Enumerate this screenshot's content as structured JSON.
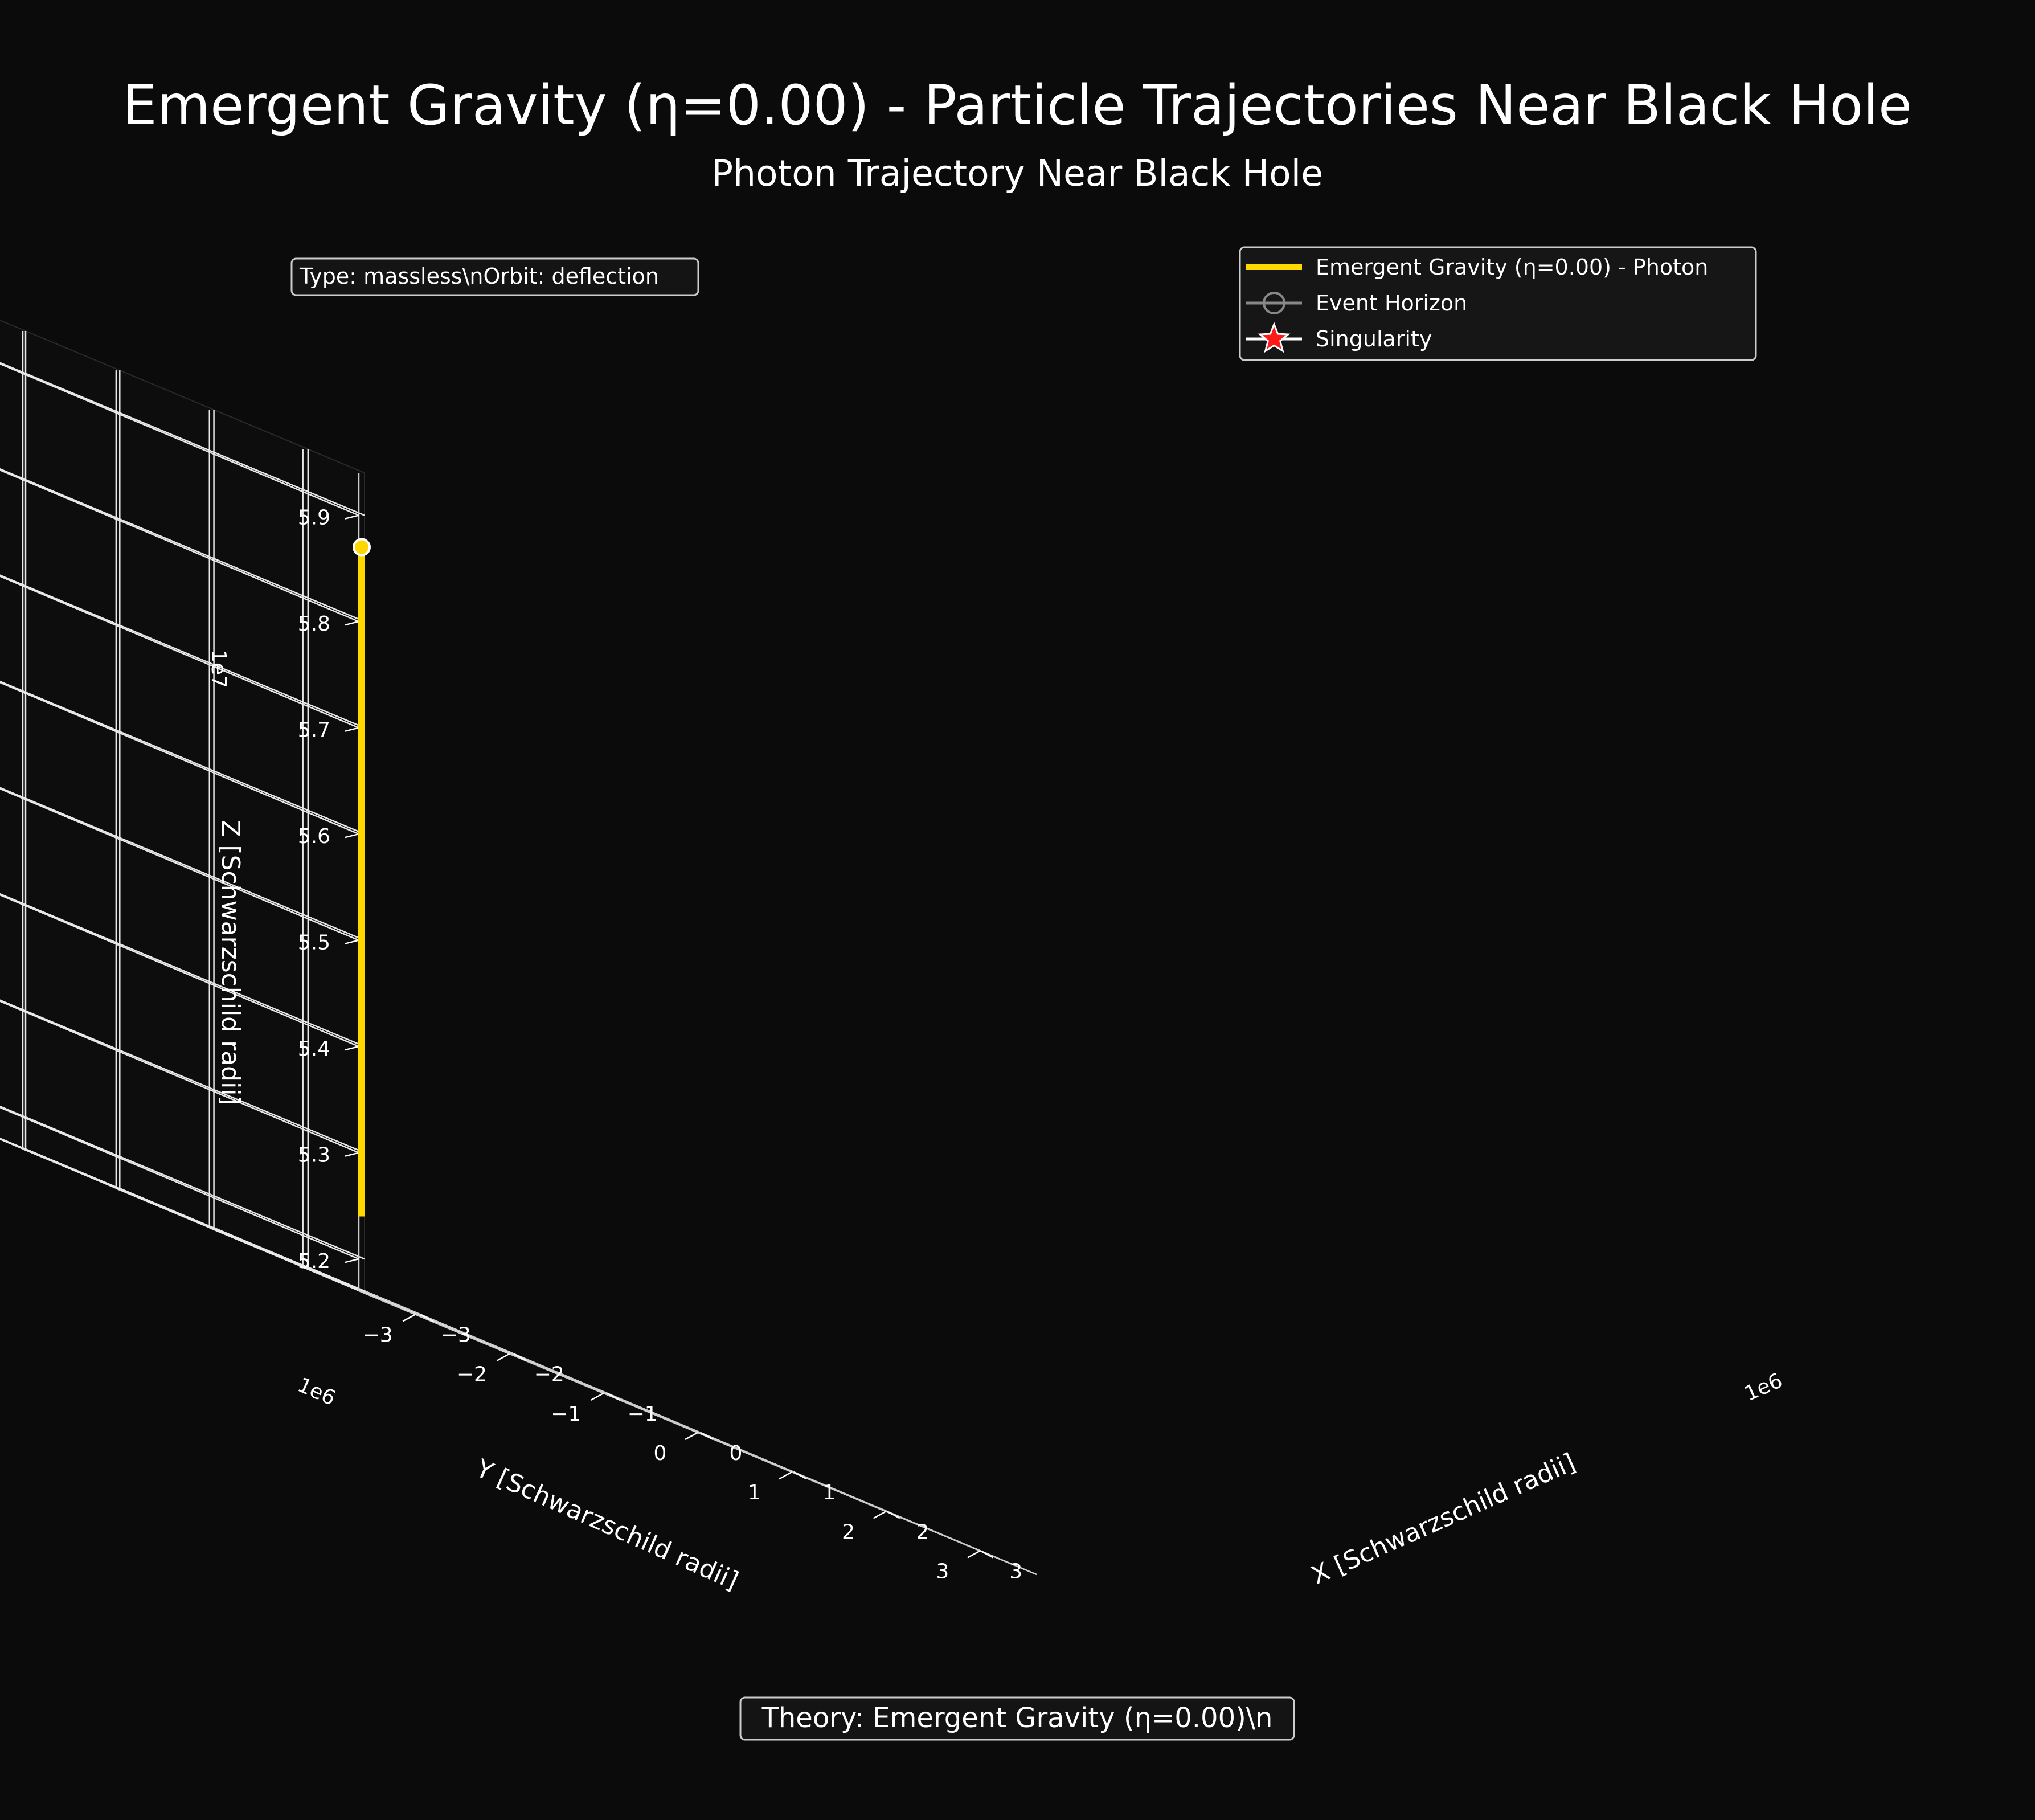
{
  "figure": {
    "title": "Emergent Gravity (η=0.00) - Particle Trajectories Near Black Hole",
    "subtitle": "Photon Trajectory Near Black Hole",
    "info_box": "Type: massless\\nOrbit: deflection",
    "footer_box": "Theory: Emergent Gravity (η=0.00)\\n",
    "background": "#0b0b0b"
  },
  "legend": {
    "items": [
      {
        "label": "Emergent Gravity (η=0.00) - Photon",
        "marker": "line",
        "color": "#ffd700"
      },
      {
        "label": "Event Horizon",
        "marker": "circle",
        "color": "#888888"
      },
      {
        "label": "Singularity",
        "marker": "star",
        "color": "#ff0000"
      }
    ]
  },
  "chart_data": {
    "type": "line",
    "projection": "3d",
    "xlabel": "X [Schwarzschild radii]",
    "ylabel": "Y [Schwarzschild radii]",
    "zlabel": "Z [Schwarzschild radii]",
    "x_offset_text": "1e6",
    "y_offset_text": "1e6",
    "z_offset_text": "1e7",
    "x_ticks": [
      "−3",
      "−2",
      "−1",
      "0",
      "1",
      "2",
      "3"
    ],
    "y_ticks": [
      "−3",
      "−2",
      "−1",
      "0",
      "1",
      "2",
      "3"
    ],
    "z_ticks": [
      "5.2",
      "5.3",
      "5.4",
      "5.5",
      "5.6",
      "5.7",
      "5.8",
      "5.9"
    ],
    "xlim": [
      -3600000.0,
      3600000.0
    ],
    "ylim": [
      -3600000.0,
      3600000.0
    ],
    "zlim": [
      51700000,
      59400000
    ],
    "grid": true,
    "legend_position": "upper right",
    "series": [
      {
        "name": "Emergent Gravity (η=0.00) - Photon",
        "color": "#ffd700",
        "x": [
          0,
          0
        ],
        "y": [
          0,
          0
        ],
        "z": [
          52400000,
          58700000
        ],
        "start_marker": {
          "x": 0,
          "y": 0,
          "z": 58700000
        }
      }
    ]
  }
}
